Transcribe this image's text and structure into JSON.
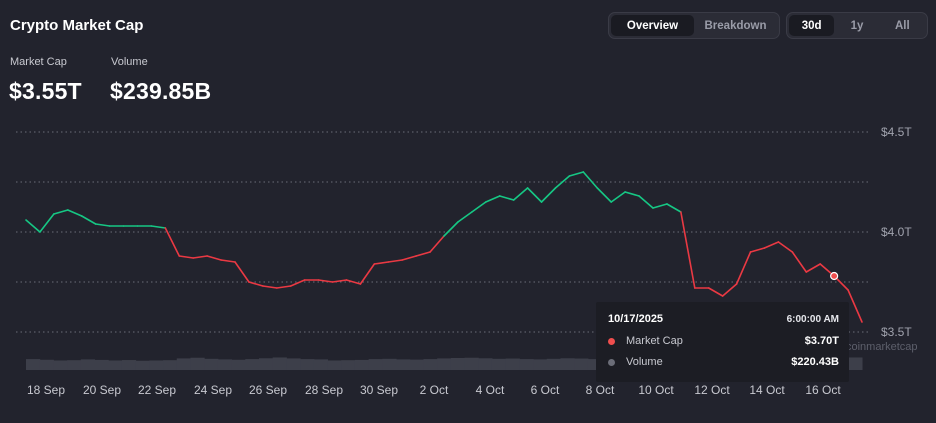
{
  "header": {
    "title": "Crypto Market Cap"
  },
  "view_toggle": {
    "options": [
      "Overview",
      "Breakdown"
    ],
    "selected": "Overview"
  },
  "range_toggle": {
    "options": [
      "30d",
      "1y",
      "All"
    ],
    "selected": "30d"
  },
  "stats": {
    "market_cap_label": "Market Cap",
    "market_cap_value": "$3.55T",
    "volume_label": "Volume",
    "volume_value": "$239.85B"
  },
  "tooltip": {
    "date": "10/17/2025",
    "time": "6:00:00 AM",
    "rows": [
      {
        "label": "Market Cap",
        "value": "$3.70T",
        "color": "#f04e4e"
      },
      {
        "label": "Volume",
        "value": "$220.43B",
        "color": "#6b6d78"
      }
    ]
  },
  "colors": {
    "up": "#16c784",
    "down": "#ea3943",
    "background": "#22232d"
  },
  "chart_data": {
    "type": "line",
    "title": "",
    "y_unit": "trillion USD",
    "ylim": [
      3.5,
      4.5
    ],
    "y_ticks": [
      "$4.5T",
      "$4.0T",
      "$3.5T"
    ],
    "y_tick_values": [
      4.5,
      4.0,
      3.5
    ],
    "x_ticks": [
      "18 Sep",
      "20 Sep",
      "22 Sep",
      "24 Sep",
      "26 Sep",
      "28 Sep",
      "30 Sep",
      "2 Oct",
      "4 Oct",
      "6 Oct",
      "8 Oct",
      "10 Oct",
      "12 Oct",
      "14 Oct",
      "16 Oct"
    ],
    "baseline": 4.0,
    "grid": "dotted horizontal",
    "series": [
      {
        "x": [
          "17 Sep",
          "17.5 Sep",
          "18 Sep",
          "18.5 Sep",
          "19 Sep",
          "19.5 Sep",
          "20 Sep",
          "20.5 Sep",
          "21 Sep",
          "21.5 Sep",
          "22 Sep",
          "22.5 Sep",
          "23 Sep",
          "23.5 Sep",
          "24 Sep",
          "24.5 Sep",
          "25 Sep",
          "25.5 Sep",
          "26 Sep",
          "26.5 Sep",
          "27 Sep",
          "27.5 Sep",
          "28 Sep",
          "28.5 Sep",
          "29 Sep",
          "29.5 Sep",
          "30 Sep",
          "30.5 Sep",
          "1 Oct",
          "1.5 Oct",
          "2 Oct",
          "2.5 Oct",
          "3 Oct",
          "3.5 Oct",
          "4 Oct",
          "4.5 Oct",
          "5 Oct",
          "5.5 Oct",
          "6 Oct",
          "6.5 Oct",
          "7 Oct",
          "7.5 Oct",
          "8 Oct",
          "8.5 Oct",
          "9 Oct",
          "9.5 Oct",
          "10 Oct",
          "10.5 Oct",
          "11 Oct",
          "11.5 Oct",
          "12 Oct",
          "12.5 Oct",
          "13 Oct",
          "13.5 Oct",
          "14 Oct",
          "14.5 Oct",
          "15 Oct",
          "15.5 Oct",
          "16 Oct",
          "16.5 Oct",
          "17 Oct"
        ],
        "values": [
          4.06,
          4.0,
          4.09,
          4.11,
          4.08,
          4.04,
          4.03,
          4.03,
          4.03,
          4.03,
          4.02,
          3.88,
          3.87,
          3.88,
          3.86,
          3.85,
          3.75,
          3.73,
          3.72,
          3.73,
          3.76,
          3.76,
          3.75,
          3.76,
          3.74,
          3.84,
          3.85,
          3.86,
          3.88,
          3.9,
          3.98,
          4.05,
          4.1,
          4.15,
          4.18,
          4.16,
          4.22,
          4.15,
          4.22,
          4.28,
          4.3,
          4.22,
          4.15,
          4.2,
          4.18,
          4.12,
          4.14,
          4.1,
          3.72,
          3.72,
          3.68,
          3.74,
          3.9,
          3.92,
          3.95,
          3.9,
          3.8,
          3.84,
          3.78,
          3.71,
          3.55
        ]
      }
    ],
    "volume_values": [
      0.8,
      0.75,
      0.7,
      0.72,
      0.78,
      0.74,
      0.7,
      0.73,
      0.68,
      0.7,
      0.72,
      0.85,
      0.9,
      0.82,
      0.78,
      0.75,
      0.8,
      0.86,
      0.92,
      0.85,
      0.8,
      0.78,
      0.7,
      0.72,
      0.74,
      0.8,
      0.82,
      0.78,
      0.76,
      0.8,
      0.85,
      0.88,
      0.9,
      0.86,
      0.82,
      0.84,
      0.8,
      0.78,
      0.82,
      0.86,
      0.84,
      0.8,
      0.82,
      0.84,
      0.86,
      0.88,
      0.9,
      1.0,
      1.1,
      0.95,
      0.9,
      0.88,
      0.86,
      0.84,
      0.82,
      0.85,
      0.88,
      0.86,
      0.84,
      0.9,
      0.92
    ],
    "watermark": "coinmarketcap"
  }
}
